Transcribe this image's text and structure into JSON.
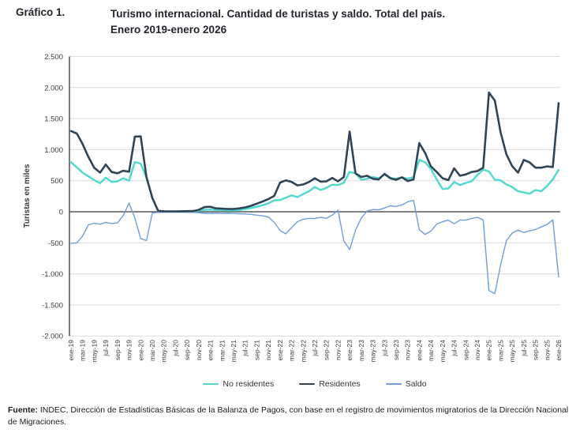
{
  "header": {
    "figure_label": "Gráfico 1.",
    "title_line1": "Turismo internacional. Cantidad de turistas y saldo. Total del país.",
    "title_line2": "Enero 2019-enero 2026"
  },
  "chart_data": {
    "type": "line",
    "title": "Turismo internacional. Cantidad de turistas y saldo. Total del país. Enero 2019-enero 2026",
    "xlabel": "",
    "ylabel": "Turistas en miles",
    "ylim": [
      -2000,
      2500
    ],
    "y_ticks": [
      2500,
      2000,
      1500,
      1000,
      500,
      0,
      -500,
      -1000,
      -1500,
      -2000
    ],
    "y_tick_labels": [
      "2.500",
      "2.000",
      "1.500",
      "1.000",
      "500",
      "0",
      "-500",
      "-1.000",
      "-1.500",
      "-2.000"
    ],
    "grid": true,
    "legend_position": "bottom",
    "x_unit": "monthly points from ene-19 to ene-26, ticks every 2 months",
    "x_tick_labels": [
      "ene-19",
      "mar-19",
      "may-19",
      "jul-19",
      "sep-19",
      "nov-19",
      "ene-20",
      "mar-20",
      "may-20",
      "jul-20",
      "sep-20",
      "nov-20",
      "ene-21",
      "mar-21",
      "may-21",
      "jul-21",
      "sep-21",
      "nov-21",
      "ene-22",
      "mar-22",
      "may-22",
      "jul-22",
      "sep-22",
      "nov-22",
      "ene-23",
      "mar-23",
      "may-23",
      "jul-23",
      "sep-23",
      "nov-23",
      "ene-24",
      "mar-24",
      "may-24",
      "jul-24",
      "sep-24",
      "nov-24",
      "ene-25",
      "mar-25",
      "may-25",
      "jul-25",
      "sep-25",
      "nov-25",
      "ene-26"
    ],
    "points_per_tick": 2,
    "series": [
      {
        "name": "No residentes",
        "color": "#4fd9ce",
        "width": 2.4,
        "values": [
          800,
          715,
          630,
          570,
          510,
          460,
          550,
          480,
          490,
          540,
          500,
          800,
          775,
          550,
          220,
          12,
          5,
          4,
          4,
          5,
          6,
          8,
          15,
          30,
          35,
          28,
          25,
          22,
          22,
          25,
          45,
          60,
          80,
          105,
          135,
          185,
          190,
          225,
          265,
          235,
          285,
          330,
          400,
          350,
          385,
          435,
          430,
          470,
          640,
          620,
          515,
          530,
          560,
          540,
          600,
          545,
          530,
          555,
          530,
          560,
          835,
          795,
          690,
          520,
          365,
          375,
          480,
          430,
          465,
          490,
          590,
          680,
          650,
          515,
          505,
          440,
          400,
          330,
          310,
          290,
          350,
          330,
          415,
          520,
          675
        ]
      },
      {
        "name": "Residentes",
        "color": "#2f4456",
        "width": 2.6,
        "values": [
          1300,
          1260,
          1090,
          880,
          710,
          630,
          760,
          640,
          620,
          660,
          645,
          1210,
          1215,
          560,
          225,
          15,
          8,
          6,
          6,
          7,
          10,
          12,
          30,
          75,
          80,
          55,
          50,
          45,
          45,
          55,
          70,
          95,
          130,
          165,
          205,
          255,
          470,
          505,
          480,
          425,
          440,
          480,
          540,
          485,
          490,
          545,
          490,
          560,
          1290,
          620,
          560,
          580,
          530,
          520,
          610,
          540,
          515,
          555,
          495,
          520,
          1105,
          945,
          730,
          640,
          540,
          510,
          700,
          580,
          600,
          640,
          655,
          710,
          1920,
          1790,
          1280,
          925,
          735,
          630,
          835,
          795,
          710,
          710,
          730,
          720,
          1750
        ]
      },
      {
        "name": "Saldo",
        "color": "#6f9fd8",
        "width": 1.4,
        "values": [
          -510,
          -500,
          -390,
          -210,
          -185,
          -200,
          -170,
          -190,
          -180,
          -60,
          140,
          -100,
          -430,
          -465,
          -20,
          -10,
          -8,
          -8,
          -8,
          -8,
          -10,
          -10,
          -15,
          -25,
          -25,
          -25,
          -28,
          -25,
          -28,
          -32,
          -35,
          -42,
          -55,
          -65,
          -85,
          -170,
          -300,
          -355,
          -255,
          -160,
          -120,
          -105,
          -110,
          -90,
          -105,
          -55,
          25,
          -470,
          -610,
          -300,
          -100,
          10,
          35,
          30,
          60,
          95,
          85,
          110,
          160,
          185,
          -290,
          -365,
          -310,
          -200,
          -160,
          -135,
          -195,
          -135,
          -135,
          -110,
          -90,
          -130,
          -1270,
          -1320,
          -855,
          -465,
          -345,
          -295,
          -335,
          -305,
          -285,
          -245,
          -205,
          -130,
          -1050
        ]
      }
    ],
    "colors": {
      "grid": "#d9d9d9",
      "axis": "#58595b",
      "tick_text": "#3c3c3c"
    }
  },
  "footer": {
    "label": "Fuente:",
    "text": " INDEC, Dirección de Estadísticas Básicas de la Balanza de Pagos, con base en el registro de movimientos migratorios de la Dirección Nacional de Migraciones."
  }
}
